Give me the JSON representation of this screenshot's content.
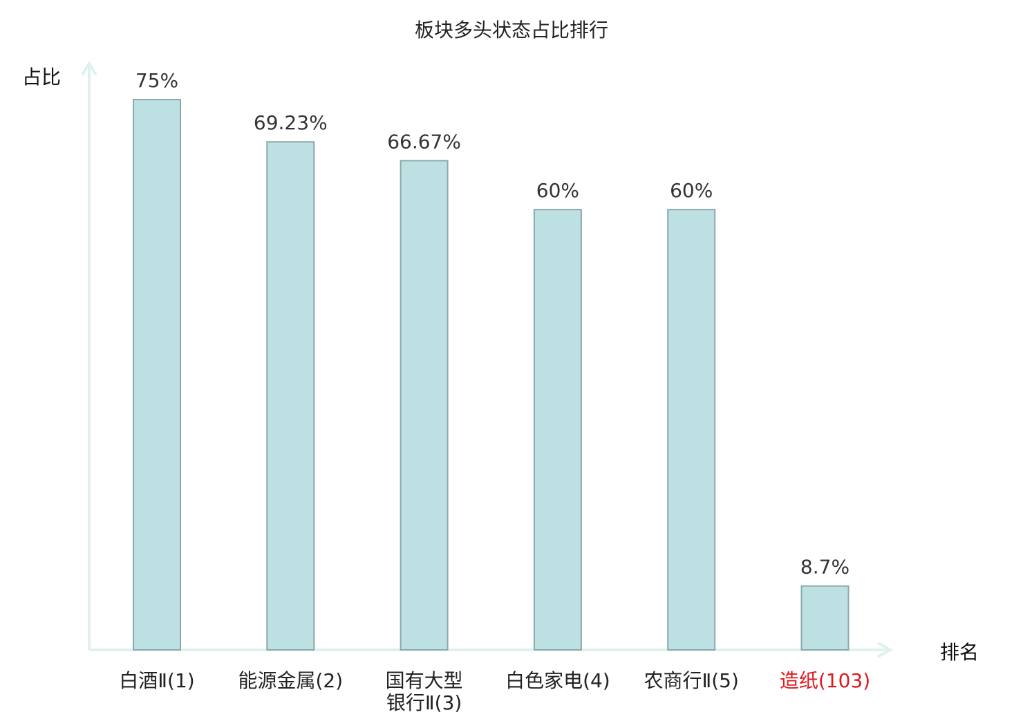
{
  "chart_data": {
    "type": "bar",
    "title": "板块多头状态占比排行",
    "ylabel": "占比",
    "xlabel": "排名",
    "categories": [
      {
        "name_lines": [
          "白酒Ⅱ"
        ],
        "rank_suffix": "(1)",
        "highlight": false
      },
      {
        "name_lines": [
          "能源金属"
        ],
        "rank_suffix": "(2)",
        "highlight": false
      },
      {
        "name_lines": [
          "国有大型",
          "银行Ⅱ"
        ],
        "rank_suffix": "(3)",
        "highlight": false
      },
      {
        "name_lines": [
          "白色家电"
        ],
        "rank_suffix": "(4)",
        "highlight": false
      },
      {
        "name_lines": [
          "农商行Ⅱ"
        ],
        "rank_suffix": "(5)",
        "highlight": false
      },
      {
        "name_lines": [
          "造纸"
        ],
        "rank_suffix": "(103)",
        "highlight": true
      }
    ],
    "values": [
      75,
      69.23,
      66.67,
      60,
      60,
      8.7
    ],
    "value_labels": [
      "75%",
      "69.23%",
      "66.67%",
      "60%",
      "60%",
      "8.7%"
    ],
    "ylim": [
      0,
      75
    ],
    "grid": false,
    "colors": {
      "bar_fill": "#bde0e3",
      "bar_stroke": "#8aa9ab",
      "axis": "#dff1ee",
      "highlight_text": "#e0191e",
      "text": "#222222",
      "value_text": "#333333"
    }
  }
}
